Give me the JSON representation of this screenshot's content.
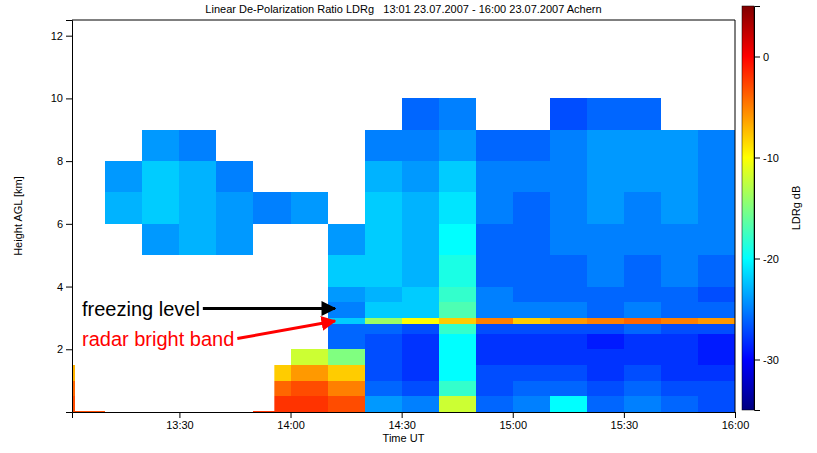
{
  "chart_data": {
    "type": "heatmap",
    "title": "Linear De-Polarization Ratio LDRg   13:01 23.07.2007 - 16:00 23.07.2007 Achern",
    "x_label": "Time UT",
    "y_label": "Height AGL [km]",
    "xlim": [
      781,
      960
    ],
    "xticks": [
      {
        "value": 810,
        "label": "13:30"
      },
      {
        "value": 840,
        "label": "14:00"
      },
      {
        "value": 870,
        "label": "14:30"
      },
      {
        "value": 900,
        "label": "15:00"
      },
      {
        "value": 930,
        "label": "15:30"
      },
      {
        "value": 960,
        "label": "16:00"
      }
    ],
    "ylim": [
      0,
      12.5
    ],
    "yticks": [
      2,
      4,
      6,
      8,
      10,
      12
    ],
    "x_edges": [
      781,
      790,
      800,
      810,
      820,
      830,
      840,
      850,
      860,
      870,
      880,
      890,
      900,
      910,
      920,
      930,
      940,
      950,
      960
    ],
    "y_edges": [
      0,
      0.5,
      1,
      1.5,
      2,
      2.5,
      2.8,
      3,
      3.5,
      4,
      5,
      6,
      7,
      8,
      9,
      10
    ],
    "values": [
      [
        -3,
        null,
        null,
        null,
        null,
        -2,
        -2,
        -3,
        -24,
        -25,
        -12,
        -26,
        -25,
        -20,
        -26,
        -25,
        -26,
        -27
      ],
      [
        -4,
        null,
        null,
        null,
        null,
        -4,
        -3,
        -5,
        -26,
        -27,
        -18,
        -27,
        -26,
        -26,
        -27,
        -26,
        -27,
        -27
      ],
      [
        -7,
        null,
        null,
        null,
        null,
        -8,
        -6,
        -8,
        -27,
        -28,
        -20,
        -27,
        -27,
        -27,
        -28,
        -27,
        -28,
        -28
      ],
      [
        null,
        null,
        null,
        null,
        null,
        null,
        -12,
        -15,
        -27,
        -28,
        -20,
        -28,
        -28,
        -28,
        -28,
        -28,
        -28,
        -29
      ],
      [
        null,
        null,
        null,
        null,
        null,
        null,
        null,
        -26,
        -27,
        -28,
        -20,
        -28,
        -28,
        -28,
        -29,
        -28,
        -28,
        -29
      ],
      [
        null,
        null,
        null,
        null,
        null,
        null,
        null,
        -26,
        -26,
        -27,
        -18,
        -27,
        -27,
        -27,
        -27,
        -26,
        -27,
        -27
      ],
      [
        null,
        null,
        null,
        null,
        null,
        null,
        null,
        -22,
        -14,
        -10,
        -8,
        -5,
        -8,
        -6,
        -5,
        -4,
        -5,
        -6
      ],
      [
        null,
        null,
        null,
        null,
        null,
        null,
        null,
        -25,
        -22,
        -22,
        -17,
        -25,
        -25,
        -25,
        -26,
        -25,
        -26,
        -26
      ],
      [
        null,
        null,
        null,
        null,
        null,
        null,
        null,
        -24,
        -23,
        -22,
        -18,
        -25,
        -26,
        -26,
        -26,
        -26,
        -26,
        -27
      ],
      [
        null,
        null,
        null,
        null,
        null,
        null,
        null,
        -22,
        -22,
        -23,
        -19,
        -26,
        -26,
        -26,
        -25,
        -26,
        -25,
        -26
      ],
      [
        null,
        null,
        -24,
        -23,
        -24,
        null,
        null,
        -24,
        -22,
        -23,
        -20,
        -26,
        -26,
        -25,
        -25,
        -25,
        -25,
        -25
      ],
      [
        null,
        -23,
        -22,
        -23,
        -24,
        -25,
        -24,
        null,
        -22,
        -23,
        -21,
        -25,
        -26,
        -25,
        -24,
        -25,
        -24,
        -25
      ],
      [
        null,
        -24,
        -22,
        -23,
        -25,
        null,
        null,
        null,
        -23,
        -24,
        -22,
        -25,
        -25,
        -25,
        -24,
        -24,
        -24,
        -25
      ],
      [
        null,
        null,
        -24,
        -25,
        null,
        null,
        null,
        null,
        -25,
        -25,
        -24,
        -26,
        -26,
        -25,
        -24,
        -24,
        -24,
        -25
      ],
      [
        null,
        null,
        null,
        null,
        null,
        null,
        null,
        null,
        null,
        -26,
        -25,
        null,
        null,
        -27,
        -26,
        -26,
        null,
        null
      ]
    ],
    "colorbar": {
      "range": [
        -35,
        5
      ],
      "ticks": [
        0,
        -10,
        -20,
        -30
      ],
      "label": "LDRg dB"
    },
    "annotations": [
      {
        "text": "freezing level",
        "color": "black",
        "x": 852,
        "y": 3.3
      },
      {
        "text": "radar bright band",
        "color": "red",
        "x": 852,
        "y": 2.9
      }
    ]
  }
}
